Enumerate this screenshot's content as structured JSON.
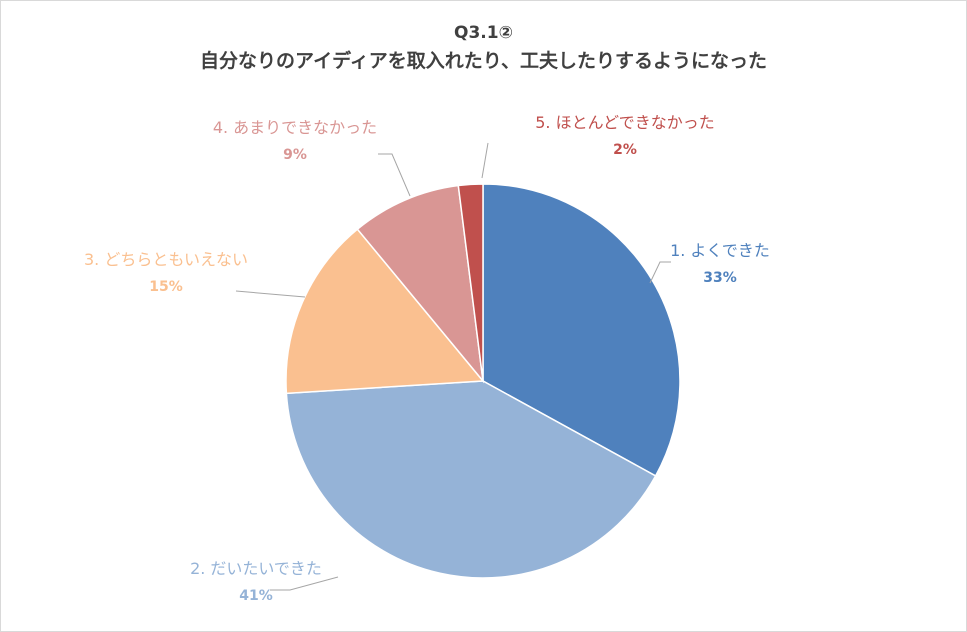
{
  "chart_data": {
    "type": "pie",
    "title": "Q3.1②",
    "subtitle": "自分なりのアイディアを取入れたり、工夫したりするようになった",
    "slices": [
      {
        "label": "1. よくできた",
        "value": 33,
        "value_label": "33%",
        "color": "#4f81bd"
      },
      {
        "label": "2. だいたいできた",
        "value": 41,
        "value_label": "41%",
        "color": "#95b3d7"
      },
      {
        "label": "3. どちらともいえない",
        "value": 15,
        "value_label": "15%",
        "color": "#fac090"
      },
      {
        "label": "4. あまりできなかった",
        "value": 9,
        "value_label": "9%",
        "color": "#d99694"
      },
      {
        "label": "5. ほとんどできなかった",
        "value": 2,
        "value_label": "2%",
        "color": "#c0504d"
      }
    ],
    "label_colors": [
      "#4f81bd",
      "#95b3d7",
      "#fac090",
      "#d99694",
      "#c0504d"
    ],
    "start_angle_deg": 0,
    "direction": "clockwise",
    "legend": "none"
  }
}
